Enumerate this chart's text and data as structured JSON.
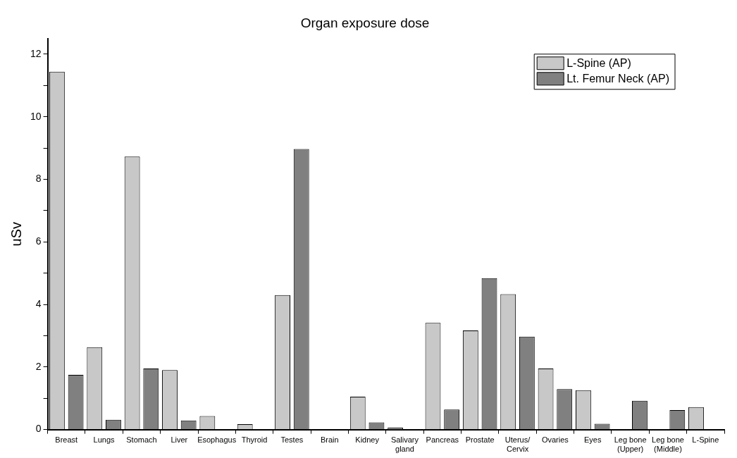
{
  "chart_data": {
    "type": "bar",
    "title": "Organ exposure dose",
    "ylabel": "uSv",
    "categories": [
      "Breast",
      "Lungs",
      "Stomach",
      "Liver",
      "Esophagus",
      "Thyroid",
      "Testes",
      "Brain",
      "Kidney",
      "Salivary gland",
      "Pancreas",
      "Prostate",
      "Uterus/ Cervix",
      "Ovaries",
      "Eyes",
      "Leg bone (Upper)",
      "Leg bone (Middle)",
      "L-Spine"
    ],
    "series": [
      {
        "name": "L-Spine (AP)",
        "color": "#c8c8c8",
        "values": [
          11.44,
          2.63,
          8.73,
          1.9,
          0.43,
          0.17,
          4.3,
          0,
          1.05,
          0.06,
          3.41,
          3.17,
          4.33,
          1.95,
          1.26,
          0,
          0,
          0.72
        ]
      },
      {
        "name": "Lt. Femur Neck (AP)",
        "color": "#808080",
        "values": [
          1.75,
          0.31,
          1.95,
          0.29,
          null,
          0,
          8.97,
          0,
          0.23,
          0,
          0.64,
          4.84,
          2.97,
          1.29,
          0.18,
          0.92,
          0.62,
          0
        ]
      }
    ],
    "ylim": [
      0,
      12.5
    ],
    "yticks": [
      0,
      {
        "value": 1,
        "label": null
      },
      2,
      {
        "value": 3,
        "label": null
      },
      4,
      {
        "value": 5,
        "label": null
      },
      6,
      {
        "value": 7,
        "label": null
      },
      8,
      {
        "value": 9,
        "label": null
      },
      10,
      {
        "value": 11,
        "label": null
      },
      12
    ],
    "grid": false,
    "legend": "top right"
  }
}
